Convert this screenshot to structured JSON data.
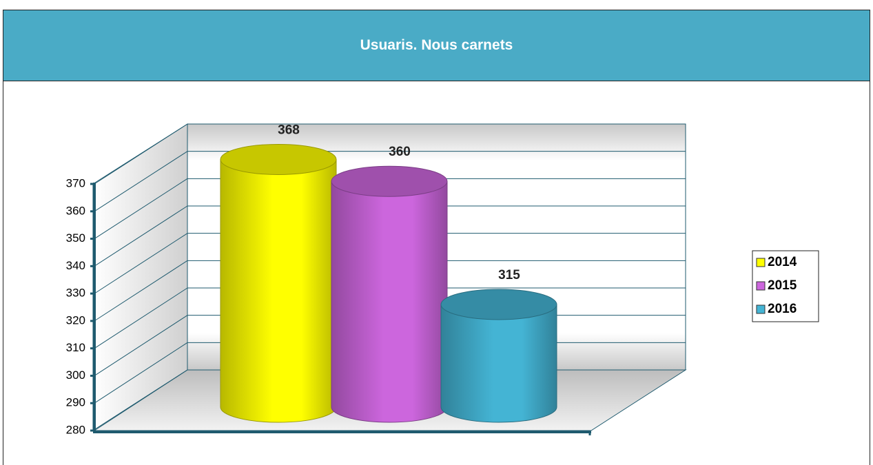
{
  "chart_data": {
    "type": "bar",
    "title": "Usuaris. Nous carnets",
    "series": [
      {
        "name": "2014",
        "color": "#ffff00",
        "values": [
          368
        ]
      },
      {
        "name": "2015",
        "color": "#cc66dd",
        "values": [
          360
        ]
      },
      {
        "name": "2016",
        "color": "#44b4d4",
        "values": [
          315
        ]
      }
    ],
    "ylim": [
      280,
      370
    ],
    "yticks": [
      280,
      290,
      300,
      310,
      320,
      330,
      340,
      350,
      360,
      370
    ],
    "grid": true,
    "legend": "right"
  }
}
